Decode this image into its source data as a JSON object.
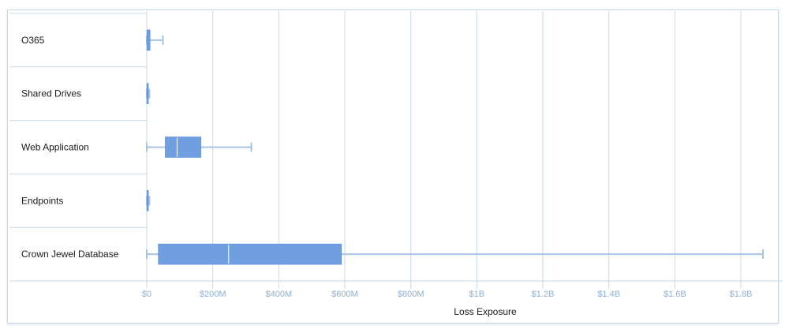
{
  "chart_data": {
    "type": "boxplot",
    "orientation": "horizontal",
    "title": "",
    "xlabel": "Loss Exposure",
    "ylabel": "",
    "xlim": [
      0,
      1900
    ],
    "x_units": "millions USD",
    "ticks": [
      {
        "value": 0,
        "label": "$0"
      },
      {
        "value": 200,
        "label": "$200M"
      },
      {
        "value": 400,
        "label": "$400M"
      },
      {
        "value": 600,
        "label": "$600M"
      },
      {
        "value": 800,
        "label": "$800M"
      },
      {
        "value": 1000,
        "label": "$1B"
      },
      {
        "value": 1200,
        "label": "$1.2B"
      },
      {
        "value": 1400,
        "label": "$1.4B"
      },
      {
        "value": 1600,
        "label": "$1.6B"
      },
      {
        "value": 1800,
        "label": "$1.8B"
      }
    ],
    "categories": [
      "O365",
      "Shared Drives",
      "Web Application",
      "Endpoints",
      "Crown Jewel Database"
    ],
    "boxes": [
      {
        "category": "O365",
        "min": 0,
        "q1": 0.3,
        "median": 6,
        "q3": 10,
        "max": 49
      },
      {
        "category": "Shared Drives",
        "min": 0,
        "q1": 0.2,
        "median": 0.5,
        "q3": 1.5,
        "max": 8
      },
      {
        "category": "Web Application",
        "min": 0,
        "q1": 56,
        "median": 92,
        "q3": 164,
        "max": 317
      },
      {
        "category": "Endpoints",
        "min": 0,
        "q1": 0.3,
        "median": 2,
        "q3": 5,
        "max": 8
      },
      {
        "category": "Crown Jewel Database",
        "min": 0,
        "q1": 35,
        "median": 248,
        "q3": 590,
        "max": 1867
      }
    ],
    "grid": true,
    "colors": {
      "box": "#6f9fe0",
      "box_stroke": "#4a86d6",
      "whisker": "#a7c3e6",
      "grid": "#c9d9ea",
      "median": "#eef4fc"
    }
  }
}
